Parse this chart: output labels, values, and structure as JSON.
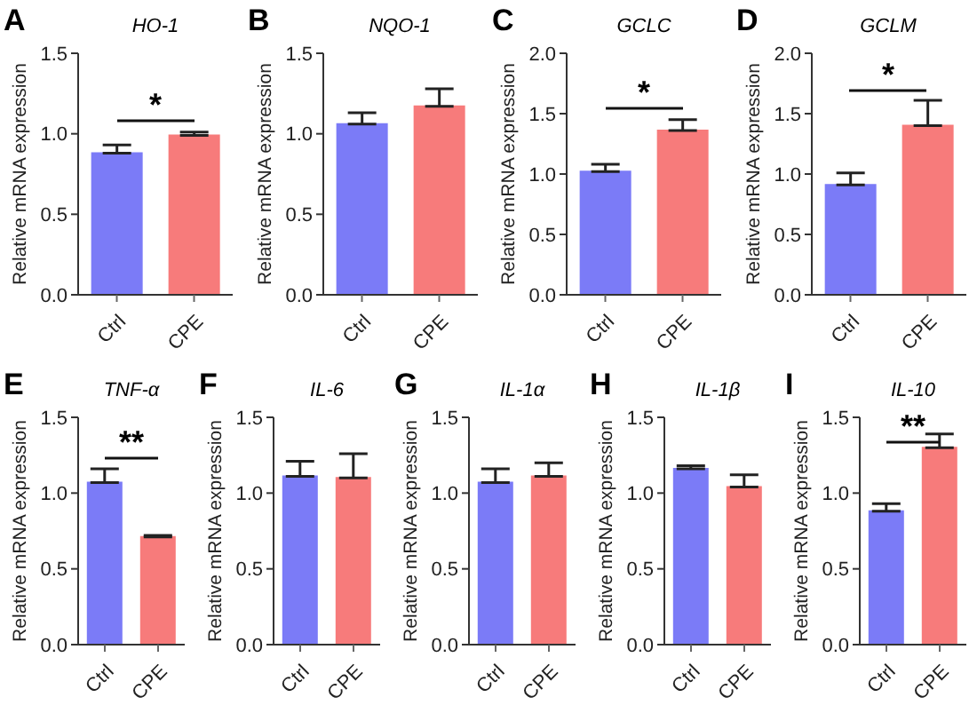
{
  "chart_data": [
    {
      "type": "bar",
      "title": "HO-1",
      "ylabel": "Relative mRNA expression",
      "categories": [
        "Ctrl",
        "CPE"
      ],
      "values": [
        0.88,
        0.99
      ],
      "errors": [
        0.05,
        0.02
      ],
      "colors": [
        "#7b7bf7",
        "#f77b7b"
      ],
      "ylim": [
        0,
        1.5
      ],
      "yticks": [
        {
          "value": 0,
          "label": "0.0"
        },
        {
          "value": 0.5,
          "label": "0.5"
        },
        {
          "value": 1,
          "label": "1.0"
        },
        {
          "value": 1.5,
          "label": "1.5"
        }
      ],
      "annotations": [
        "A",
        "*"
      ]
    },
    {
      "type": "bar",
      "title": "NQO-1",
      "ylabel": "Relative mRNA expression",
      "categories": [
        "Ctrl",
        "CPE"
      ],
      "values": [
        1.06,
        1.17
      ],
      "errors": [
        0.07,
        0.11
      ],
      "colors": [
        "#7b7bf7",
        "#f77b7b"
      ],
      "ylim": [
        0,
        1.5
      ],
      "yticks": [
        {
          "value": 0,
          "label": "0.0"
        },
        {
          "value": 0.5,
          "label": "0.5"
        },
        {
          "value": 1,
          "label": "1.0"
        },
        {
          "value": 1.5,
          "label": "1.5"
        }
      ],
      "annotations": [
        "B"
      ]
    },
    {
      "type": "bar",
      "title": "GCLC",
      "ylabel": "Relative mRNA expression",
      "categories": [
        "Ctrl",
        "CPE"
      ],
      "values": [
        1.02,
        1.36
      ],
      "errors": [
        0.06,
        0.09
      ],
      "colors": [
        "#7b7bf7",
        "#f77b7b"
      ],
      "ylim": [
        0,
        2
      ],
      "yticks": [
        {
          "value": 0,
          "label": "0.0"
        },
        {
          "value": 0.5,
          "label": "0.5"
        },
        {
          "value": 1,
          "label": "1.0"
        },
        {
          "value": 1.5,
          "label": "1.5"
        },
        {
          "value": 2,
          "label": "2.0"
        }
      ],
      "annotations": [
        "C",
        "*"
      ]
    },
    {
      "type": "bar",
      "title": "GCLM",
      "ylabel": "Relative mRNA expression",
      "categories": [
        "Ctrl",
        "CPE"
      ],
      "values": [
        0.91,
        1.4
      ],
      "errors": [
        0.1,
        0.21
      ],
      "colors": [
        "#7b7bf7",
        "#f77b7b"
      ],
      "ylim": [
        0,
        2
      ],
      "yticks": [
        {
          "value": 0,
          "label": "0.0"
        },
        {
          "value": 0.5,
          "label": "0.5"
        },
        {
          "value": 1,
          "label": "1.0"
        },
        {
          "value": 1.5,
          "label": "1.5"
        },
        {
          "value": 2,
          "label": "2.0"
        }
      ],
      "annotations": [
        "D",
        "*"
      ]
    },
    {
      "type": "bar",
      "title": "TNF-α",
      "ylabel": "Relative mRNA expression",
      "categories": [
        "Ctrl",
        "CPE"
      ],
      "values": [
        1.07,
        0.71
      ],
      "errors": [
        0.09,
        0.01
      ],
      "colors": [
        "#7b7bf7",
        "#f77b7b"
      ],
      "ylim": [
        0,
        1.5
      ],
      "yticks": [
        {
          "value": 0,
          "label": "0.0"
        },
        {
          "value": 0.5,
          "label": "0.5"
        },
        {
          "value": 1,
          "label": "1.0"
        },
        {
          "value": 1.5,
          "label": "1.5"
        }
      ],
      "annotations": [
        "E",
        "**"
      ]
    },
    {
      "type": "bar",
      "title": "IL-6",
      "ylabel": "Relative mRNA expression",
      "categories": [
        "Ctrl",
        "CPE"
      ],
      "values": [
        1.11,
        1.1
      ],
      "errors": [
        0.1,
        0.16
      ],
      "colors": [
        "#7b7bf7",
        "#f77b7b"
      ],
      "ylim": [
        0,
        1.5
      ],
      "yticks": [
        {
          "value": 0,
          "label": "0.0"
        },
        {
          "value": 0.5,
          "label": "0.5"
        },
        {
          "value": 1,
          "label": "1.0"
        },
        {
          "value": 1.5,
          "label": "1.5"
        }
      ],
      "annotations": [
        "F"
      ]
    },
    {
      "type": "bar",
      "title": "IL-1α",
      "ylabel": "Relative mRNA expression",
      "categories": [
        "Ctrl",
        "CPE"
      ],
      "values": [
        1.07,
        1.11
      ],
      "errors": [
        0.09,
        0.09
      ],
      "colors": [
        "#7b7bf7",
        "#f77b7b"
      ],
      "ylim": [
        0,
        1.5
      ],
      "yticks": [
        {
          "value": 0,
          "label": "0.0"
        },
        {
          "value": 0.5,
          "label": "0.5"
        },
        {
          "value": 1,
          "label": "1.0"
        },
        {
          "value": 1.5,
          "label": "1.5"
        }
      ],
      "annotations": [
        "G"
      ]
    },
    {
      "type": "bar",
      "title": "IL-1β",
      "ylabel": "Relative mRNA expression",
      "categories": [
        "Ctrl",
        "CPE"
      ],
      "values": [
        1.16,
        1.04
      ],
      "errors": [
        0.02,
        0.08
      ],
      "colors": [
        "#7b7bf7",
        "#f77b7b"
      ],
      "ylim": [
        0,
        1.5
      ],
      "yticks": [
        {
          "value": 0,
          "label": "0.0"
        },
        {
          "value": 0.5,
          "label": "0.5"
        },
        {
          "value": 1,
          "label": "1.0"
        },
        {
          "value": 1.5,
          "label": "1.5"
        }
      ],
      "annotations": [
        "H"
      ]
    },
    {
      "type": "bar",
      "title": "IL-10",
      "ylabel": "Relative mRNA expression",
      "categories": [
        "Ctrl",
        "CPE"
      ],
      "values": [
        0.88,
        1.3
      ],
      "errors": [
        0.05,
        0.09
      ],
      "colors": [
        "#7b7bf7",
        "#f77b7b"
      ],
      "ylim": [
        0,
        1.5
      ],
      "yticks": [
        {
          "value": 0,
          "label": "0.0"
        },
        {
          "value": 0.5,
          "label": "0.5"
        },
        {
          "value": 1,
          "label": "1.0"
        },
        {
          "value": 1.5,
          "label": "1.5"
        }
      ],
      "annotations": [
        "I",
        "**"
      ]
    }
  ]
}
